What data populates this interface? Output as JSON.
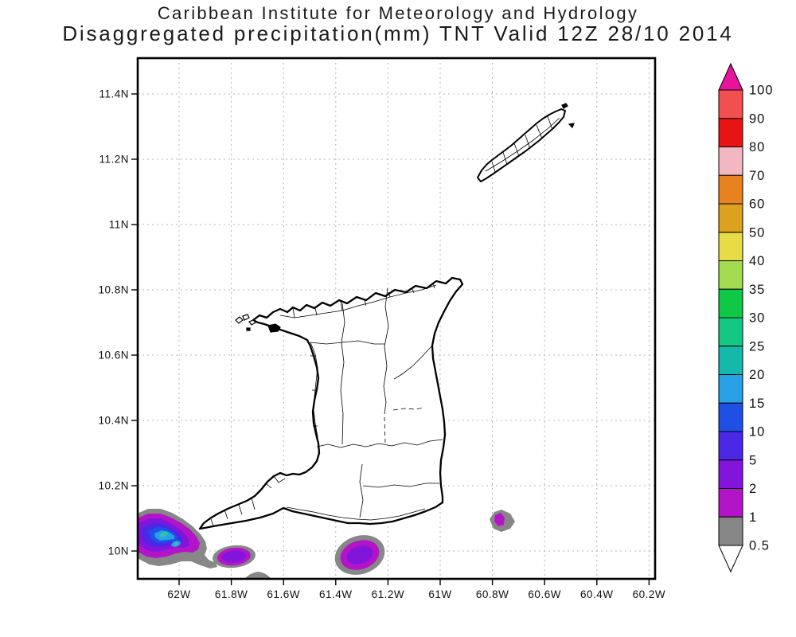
{
  "title": {
    "line1": "Caribbean Institute for Meteorology and Hydrology",
    "line2": "Disaggregated precipitation(mm) TNT Valid 12Z 28/10 2014"
  },
  "map": {
    "islands": [
      "Trinidad",
      "Tobago"
    ],
    "y_axis": {
      "labels": [
        "11.4N",
        "11.2N",
        "11N",
        "10.8N",
        "10.6N",
        "10.4N",
        "10.2N",
        "10N"
      ]
    },
    "x_axis": {
      "labels": [
        "62W",
        "61.8W",
        "61.6W",
        "61.4W",
        "61.2W",
        "61W",
        "60.8W",
        "60.6W",
        "60.4W",
        "60.2W"
      ]
    },
    "grid_style": "dashed-gray"
  },
  "colorbar": {
    "units": "mm",
    "tick_labels": [
      "100",
      "90",
      "80",
      "70",
      "60",
      "50",
      "40",
      "35",
      "30",
      "25",
      "20",
      "15",
      "10",
      "5",
      "2",
      "1",
      "0.5"
    ],
    "segment_colors_top_to_bottom": [
      "#f25050",
      "#e81414",
      "#f3b7c1",
      "#e8821e",
      "#dca11e",
      "#e8dc46",
      "#a3dc50",
      "#0fc846",
      "#14c882",
      "#14b9ab",
      "#28a0e6",
      "#1e50e6",
      "#4b28e6",
      "#8214dc",
      "#b414c8",
      "#878787"
    ],
    "above_max_color": "#e6149b",
    "below_min_color": "#ffffff"
  },
  "chart_data": {
    "type": "map-contour",
    "title": "Disaggregated precipitation(mm) TNT Valid 12Z 28/10 2014",
    "units": "mm",
    "lon_range_deg_w": [
      62.17,
      60.17
    ],
    "lat_range_deg_n": [
      9.91,
      11.51
    ],
    "contour_levels_mm": [
      0.5,
      1,
      2,
      5,
      10,
      15,
      20,
      25,
      30,
      35,
      40,
      50,
      60,
      70,
      80,
      90,
      100
    ],
    "precipitation_cells": [
      {
        "name": "large-cell-southwest",
        "approx_lon_w": 62.06,
        "approx_lat_n": 10.04,
        "peak_range_mm": "20-25"
      },
      {
        "name": "small-cell-south-1",
        "approx_lon_w": 61.79,
        "approx_lat_n": 9.98,
        "peak_range_mm": "2-5"
      },
      {
        "name": "small-cell-south-2",
        "approx_lon_w": 61.31,
        "approx_lat_n": 9.99,
        "peak_range_mm": "2-5"
      },
      {
        "name": "small-cell-east",
        "approx_lon_w": 60.77,
        "approx_lat_n": 10.09,
        "peak_range_mm": "1-2"
      },
      {
        "name": "gray-patch-bottom-edge",
        "approx_lon_w": 61.7,
        "approx_lat_n": 9.92,
        "peak_range_mm": "0.5-1"
      }
    ]
  }
}
